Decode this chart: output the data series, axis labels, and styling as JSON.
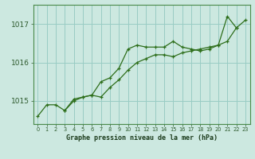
{
  "title": "Graphe pression niveau de la mer (hPa)",
  "background_color": "#cce8e0",
  "grid_color": "#99ccc4",
  "line_color": "#2d6e1a",
  "xlim": [
    -0.5,
    23.5
  ],
  "ylim": [
    1014.4,
    1017.5
  ],
  "yticks": [
    1015,
    1016,
    1017
  ],
  "xticks": [
    0,
    1,
    2,
    3,
    4,
    5,
    6,
    7,
    8,
    9,
    10,
    11,
    12,
    13,
    14,
    15,
    16,
    17,
    18,
    19,
    20,
    21,
    22,
    23
  ],
  "series1_x": [
    0,
    1,
    2,
    3,
    4,
    5,
    6,
    7,
    8,
    9,
    10,
    11,
    12,
    13,
    14,
    15,
    16,
    17,
    18,
    19,
    20,
    21,
    22
  ],
  "series1_y": [
    1014.6,
    1014.9,
    1014.9,
    1014.75,
    1015.05,
    1015.1,
    1015.15,
    1015.5,
    1015.6,
    1015.85,
    1016.35,
    1016.45,
    1016.4,
    1016.4,
    1016.4,
    1016.55,
    1016.4,
    1016.35,
    1016.3,
    1016.35,
    1016.45,
    1017.2,
    1016.9
  ],
  "series2_x": [
    3,
    4,
    5,
    6,
    7,
    8,
    9,
    10,
    11,
    12,
    13,
    14,
    15,
    16,
    17,
    18,
    19,
    20,
    21,
    22,
    23
  ],
  "series2_y": [
    1014.75,
    1015.0,
    1015.1,
    1015.15,
    1015.1,
    1015.35,
    1015.55,
    1015.8,
    1016.0,
    1016.1,
    1016.2,
    1016.2,
    1016.15,
    1016.25,
    1016.3,
    1016.35,
    1016.4,
    1016.45,
    1016.55,
    1016.9,
    1017.1
  ]
}
